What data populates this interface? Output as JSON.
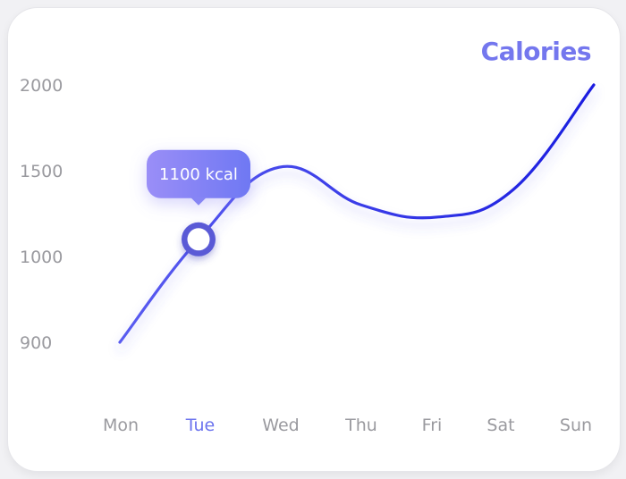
{
  "chart_data": {
    "type": "line",
    "title": "Calories",
    "categories": [
      "Mon",
      "Tue",
      "Wed",
      "Thu",
      "Fri",
      "Sat",
      "Sun"
    ],
    "y_ticks": [
      900,
      1000,
      1500,
      2000
    ],
    "series": [
      {
        "values": [
          900,
          1100,
          1520,
          1300,
          1230,
          1390,
          2000
        ]
      }
    ],
    "highlight": {
      "category": "Tue",
      "label": "1100 kcal"
    },
    "grid": false,
    "colors": {
      "title": "#7477ee",
      "line_start": "#5a5cf0",
      "line_end": "#1a1de0",
      "active_tick": "#6b73ee",
      "tick": "#9a9a9f",
      "tooltip_start": "#9a8ef7",
      "tooltip_end": "#6f78f3",
      "marker_ring": "#5a5ad6"
    }
  }
}
